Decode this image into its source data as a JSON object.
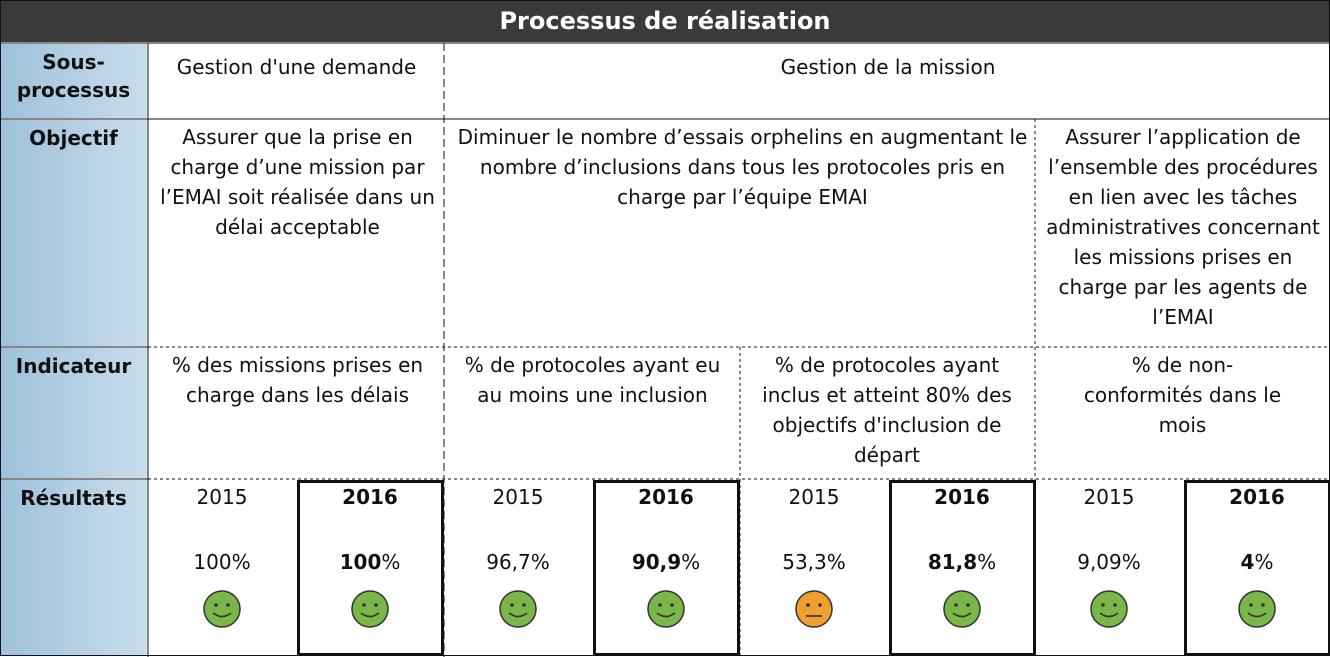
{
  "title": "Processus de réalisation",
  "row_headers": {
    "sous_processus": "Sous-processus",
    "objectif": "Objectif",
    "indicateur": "Indicateur",
    "resultats": "Résultats"
  },
  "sous_processus": [
    "Gestion d'une demande",
    "Gestion de la mission"
  ],
  "objectifs": [
    "Assurer que la prise en charge d’une mission par l’EMAI soit réalisée dans un délai acceptable",
    "Diminuer le nombre d’essais orphelins en augmentant le nombre d’inclusions dans tous les protocoles pris en charge par l’équipe EMAI",
    "Assurer l’application de l’ensemble des procédures en lien avec les tâches administratives concernant les missions prises en charge par les agents de l’EMAI"
  ],
  "indicateurs": [
    "% des missions prises en charge dans les délais",
    "% de protocoles ayant eu au moins une inclusion",
    "% de protocoles ayant inclus et atteint 80% des objectifs d'inclusion de départ",
    "% de non-conformités dans le mois"
  ],
  "resultats": [
    {
      "year": "2015",
      "value": "100%",
      "status": "green",
      "highlight": false
    },
    {
      "year": "2016",
      "value_num": "100",
      "value_unit": "%",
      "status": "green",
      "highlight": true
    },
    {
      "year": "2015",
      "value": "96,7%",
      "status": "green",
      "highlight": false
    },
    {
      "year": "2016",
      "value_num": "90,9",
      "value_unit": "%",
      "status": "green",
      "highlight": true
    },
    {
      "year": "2015",
      "value": "53,3%",
      "status": "orange",
      "highlight": false
    },
    {
      "year": "2016",
      "value_num": "81,8",
      "value_unit": "%",
      "status": "green",
      "highlight": true
    },
    {
      "year": "2015",
      "value": "9,09%",
      "status": "green",
      "highlight": false
    },
    {
      "year": "2016",
      "value_num": "4",
      "value_unit": "%",
      "status": "green",
      "highlight": true
    }
  ],
  "colors": {
    "title_bg": "#3a3a3a",
    "header_bg": "#b3cfe2",
    "smiley_green": "#7ab648",
    "smiley_orange": "#f0a030"
  },
  "icons": {
    "green": "smiley-happy-icon",
    "orange": "smiley-neutral-icon"
  }
}
